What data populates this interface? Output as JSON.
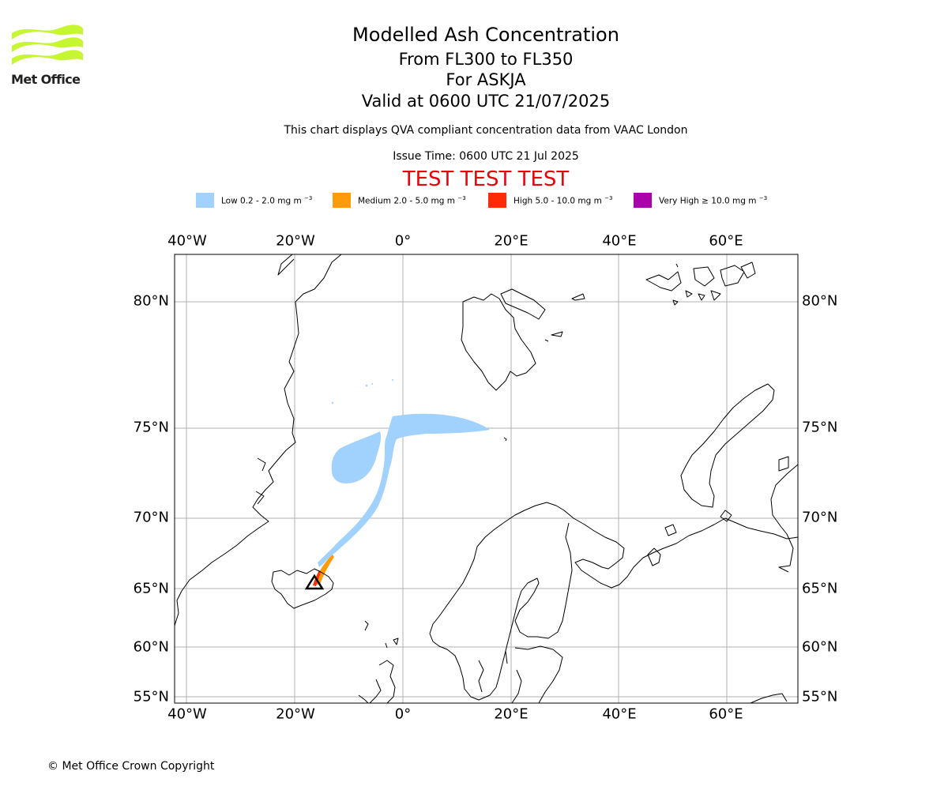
{
  "logo": {
    "text": "Met Office",
    "colors": {
      "waves": "#c6f531",
      "text": "#222222"
    }
  },
  "title": {
    "main": "Modelled Ash Concentration",
    "levels": "From FL300 to FL350",
    "volcano": "For ASKJA",
    "valid": "Valid at 0600 UTC 21/07/2025"
  },
  "subtitle": "This chart displays QVA compliant concentration data from VAAC London",
  "issue_time": "Issue Time: 0600 UTC 21 Jul 2025",
  "test_banner": {
    "text": "TEST TEST TEST",
    "color": "#e8000b"
  },
  "legend": [
    {
      "label": "Low 0.2 - 2.0 mg m",
      "exp": "−3",
      "color": "#a0d2fd"
    },
    {
      "label": "Medium 2.0 - 5.0 mg m",
      "exp": "−3",
      "color": "#ff9a0a"
    },
    {
      "label": "High 5.0 - 10.0 mg m",
      "exp": "−3",
      "color": "#ff2b06"
    },
    {
      "label": "Very High  ≥  10.0 mg m",
      "exp": "−3",
      "color": "#ab03ab"
    }
  ],
  "map": {
    "projection": "polar stereographic",
    "lon_range": [
      -40,
      70
    ],
    "lat_range": [
      55,
      82
    ],
    "grid": true,
    "lon_ticks": [
      {
        "value": -40,
        "label": "40°W"
      },
      {
        "value": -20,
        "label": "20°W"
      },
      {
        "value": 0,
        "label": "0°"
      },
      {
        "value": 20,
        "label": "20°E"
      },
      {
        "value": 40,
        "label": "40°E"
      },
      {
        "value": 60,
        "label": "60°E"
      }
    ],
    "lat_ticks": [
      {
        "value": 80,
        "label": "80°N"
      },
      {
        "value": 75,
        "label": "75°N"
      },
      {
        "value": 70,
        "label": "70°N"
      },
      {
        "value": 65,
        "label": "65°N"
      },
      {
        "value": 60,
        "label": "60°N"
      },
      {
        "value": 55,
        "label": "55°N"
      }
    ],
    "volcano_marker": {
      "name": "ASKJA",
      "lat": 65.0,
      "lon": -16.8,
      "symbol": "triangle"
    },
    "colors": {
      "coast": "#000000",
      "grid": "#b0b0b0",
      "ash_low": "#a0d2fd",
      "ash_medium": "#ff9a0a",
      "ash_high": "#ff2b06"
    }
  },
  "copyright": "© Met Office Crown Copyright"
}
